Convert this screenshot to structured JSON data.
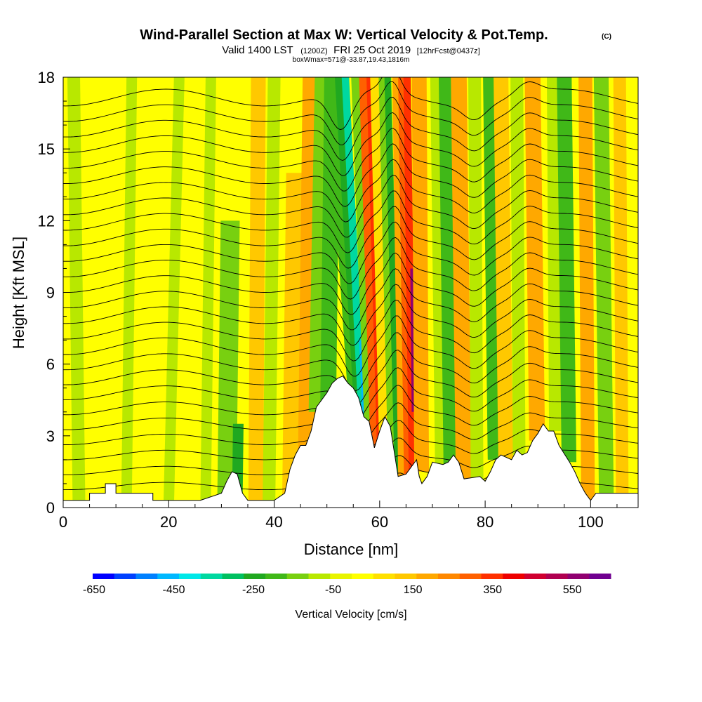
{
  "title": "Wind-Parallel Section at Max W: Vertical Velocity & Pot.Temp.",
  "copyright": "(C)",
  "subtitle": {
    "valid": "Valid 1400 LST",
    "utc": "(1200Z)",
    "date": "FRI 25 Oct 2019",
    "forecast": "[12hrFcst@0437z]",
    "box_info": "boxWmax=571@-33.87,19.43,1816m"
  },
  "chart_data": {
    "type": "heatmap",
    "title": "Wind-Parallel Section at Max W: Vertical Velocity & Pot.Temp.",
    "xlabel": "Distance [nm]",
    "ylabel": "Height [Kft MSL]",
    "xlim": [
      0,
      109
    ],
    "ylim": [
      0,
      18
    ],
    "xticks": [
      0,
      20,
      40,
      60,
      80,
      100
    ],
    "yticks": [
      0,
      3,
      6,
      9,
      12,
      15,
      18
    ],
    "colorbar": {
      "label": "Vertical Velocity [cm/s]",
      "ticks": [
        -650,
        -450,
        -250,
        -50,
        150,
        350,
        550
      ],
      "colors": [
        "#0000ff",
        "#0040ff",
        "#0080ff",
        "#00b8ff",
        "#00e8e8",
        "#00d8a0",
        "#00c060",
        "#20a820",
        "#40b818",
        "#78d010",
        "#b8e800",
        "#e8f400",
        "#ffff00",
        "#ffe000",
        "#ffc800",
        "#ffa800",
        "#ff8800",
        "#ff6000",
        "#ff3000",
        "#ee0000",
        "#d00030",
        "#b00050",
        "#900070",
        "#700090"
      ]
    },
    "terrain": [
      [
        0,
        0.3
      ],
      [
        5,
        0.3
      ],
      [
        5,
        0.6
      ],
      [
        8,
        0.6
      ],
      [
        8,
        1.0
      ],
      [
        10,
        1.0
      ],
      [
        10,
        0.6
      ],
      [
        17,
        0.6
      ],
      [
        17,
        0.3
      ],
      [
        26,
        0.3
      ],
      [
        30,
        0.6
      ],
      [
        31,
        1.1
      ],
      [
        32,
        1.5
      ],
      [
        33,
        1.4
      ],
      [
        34,
        0.6
      ],
      [
        35,
        0.3
      ],
      [
        40,
        0.3
      ],
      [
        42,
        0.6
      ],
      [
        43,
        1.6
      ],
      [
        44,
        2.2
      ],
      [
        45,
        2.6
      ],
      [
        46,
        2.6
      ],
      [
        47,
        3.2
      ],
      [
        48,
        4.2
      ],
      [
        50,
        4.8
      ],
      [
        51,
        5.2
      ],
      [
        52,
        5.4
      ],
      [
        53,
        5.5
      ],
      [
        54,
        5.2
      ],
      [
        55,
        5.0
      ],
      [
        56,
        4.6
      ],
      [
        57,
        3.8
      ],
      [
        58,
        3.6
      ],
      [
        59,
        2.5
      ],
      [
        60,
        3.2
      ],
      [
        61,
        3.8
      ],
      [
        62,
        3.4
      ],
      [
        63,
        2.0
      ],
      [
        63.5,
        1.3
      ],
      [
        65,
        1.4
      ],
      [
        67,
        2.0
      ],
      [
        67.5,
        1.3
      ],
      [
        68,
        1.0
      ],
      [
        69,
        1.3
      ],
      [
        70,
        1.9
      ],
      [
        72,
        1.8
      ],
      [
        73,
        1.9
      ],
      [
        74,
        2.2
      ],
      [
        75,
        1.9
      ],
      [
        76,
        1.2
      ],
      [
        79,
        1.3
      ],
      [
        80,
        1.1
      ],
      [
        81,
        1.5
      ],
      [
        82,
        2.0
      ],
      [
        83,
        2.2
      ],
      [
        85,
        2.0
      ],
      [
        86,
        2.4
      ],
      [
        87,
        2.2
      ],
      [
        88,
        2.3
      ],
      [
        89,
        2.8
      ],
      [
        90,
        3.1
      ],
      [
        91,
        3.5
      ],
      [
        92,
        3.2
      ],
      [
        93,
        3.2
      ],
      [
        94,
        2.6
      ],
      [
        96,
        1.9
      ],
      [
        97,
        1.5
      ],
      [
        98,
        1.0
      ],
      [
        99,
        0.6
      ],
      [
        100,
        0.3
      ],
      [
        101,
        0.6
      ],
      [
        102,
        0.6
      ],
      [
        105,
        0.6
      ],
      [
        109,
        0.6
      ]
    ],
    "updraft_max": {
      "value": 571,
      "location": "-33.87,19.43",
      "height_m": 1816
    }
  }
}
